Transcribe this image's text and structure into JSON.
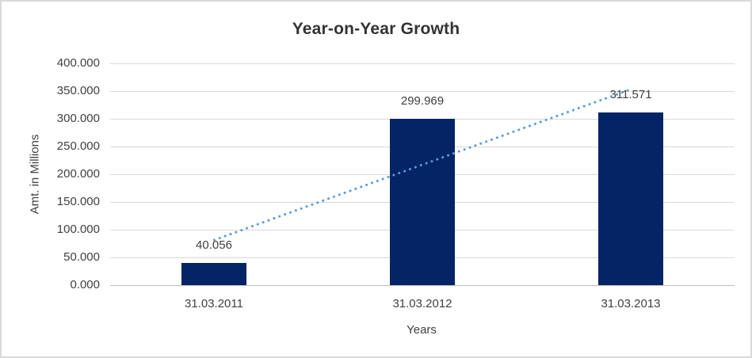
{
  "chart_data": {
    "type": "bar",
    "title": "Year-on-Year Growth",
    "xlabel": "Years",
    "ylabel": "Amt. in Millions",
    "categories": [
      "31.03.2011",
      "31.03.2012",
      "31.03.2013"
    ],
    "values": [
      40.056,
      299.969,
      311.571
    ],
    "value_labels": [
      "40.056",
      "299.969",
      "311.571"
    ],
    "ylim": [
      0,
      400
    ],
    "yticks": [
      0,
      50,
      100,
      150,
      200,
      250,
      300,
      350,
      400
    ],
    "ytick_labels": [
      "0.000",
      "50.000",
      "100.000",
      "150.000",
      "200.000",
      "250.000",
      "300.000",
      "350.000",
      "400.000"
    ],
    "grid": true,
    "legend": "none",
    "trendline": {
      "type": "linear",
      "style": "dotted",
      "start_value": 81.4,
      "end_value": 353.0
    },
    "colors": {
      "bar": "#052465",
      "trendline": "#5B9BD5",
      "gridline": "#D9D9D9",
      "axis_line": "#BFBFBF",
      "text": "#404040",
      "title": "#333333",
      "border": "#D9D9D9",
      "background": "#FFFFFF"
    }
  }
}
